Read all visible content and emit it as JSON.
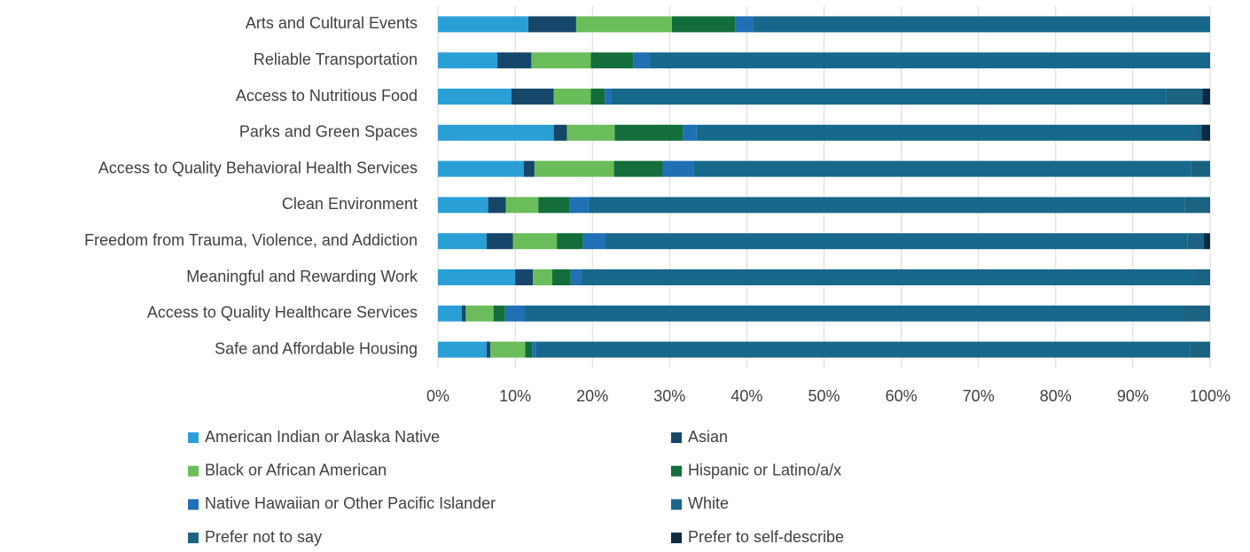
{
  "chart_data": {
    "type": "bar",
    "orientation": "horizontal",
    "stacked": true,
    "categories": [
      "Arts and Cultural Events",
      "Reliable Transportation",
      "Access to Nutritious Food",
      "Parks and Green Spaces",
      "Access to Quality Behavioral Health Services",
      "Clean Environment",
      "Freedom from Trauma, Violence, and Addiction",
      "Meaningful and Rewarding Work",
      "Access to Quality Healthcare Services",
      "Safe and Affordable Housing"
    ],
    "series": [
      {
        "name": "American Indian or Alaska Native",
        "color": "#2a9fd6",
        "values": [
          11.7,
          7.7,
          9.5,
          15.0,
          11.1,
          6.5,
          6.3,
          10.0,
          3.1,
          6.3
        ]
      },
      {
        "name": "Asian",
        "color": "#16476a",
        "values": [
          6.2,
          4.4,
          5.5,
          1.7,
          1.4,
          2.3,
          3.4,
          2.3,
          0.5,
          0.5
        ]
      },
      {
        "name": "Black or African American",
        "color": "#6bbd5b",
        "values": [
          12.4,
          7.7,
          4.8,
          6.2,
          10.3,
          4.2,
          5.7,
          2.5,
          3.6,
          4.5
        ]
      },
      {
        "name": "Hispanic or Latino/a/x",
        "color": "#146e3c",
        "values": [
          8.2,
          5.5,
          1.8,
          8.8,
          6.3,
          4.0,
          3.4,
          2.4,
          1.5,
          0.9
        ]
      },
      {
        "name": "Native Hawaiian or Other Pacific Islander",
        "color": "#1f70b5",
        "values": [
          2.3,
          2.2,
          0.9,
          1.8,
          4.0,
          2.5,
          2.8,
          1.3,
          2.5,
          0.5
        ]
      },
      {
        "name": "White",
        "color": "#17688a",
        "values": [
          59.2,
          72.5,
          71.8,
          64.6,
          64.4,
          77.2,
          75.5,
          79.6,
          85.3,
          84.7
        ]
      },
      {
        "name": "Prefer not to say",
        "color": "#1b6380",
        "values": [
          0,
          0,
          4.7,
          0.8,
          2.5,
          3.3,
          2.1,
          1.9,
          3.5,
          2.6
        ]
      },
      {
        "name": "Prefer to self-describe",
        "color": "#0e2a43",
        "values": [
          0,
          0,
          1.0,
          1.1,
          0,
          0,
          0.8,
          0,
          0,
          0
        ]
      }
    ],
    "xlim": [
      0,
      100
    ],
    "xticks": [
      {
        "value": 0,
        "label": "0%"
      },
      {
        "value": 10,
        "label": "10%"
      },
      {
        "value": 20,
        "label": "20%"
      },
      {
        "value": 30,
        "label": "30%"
      },
      {
        "value": 40,
        "label": "40%"
      },
      {
        "value": 50,
        "label": "50%"
      },
      {
        "value": 60,
        "label": "60%"
      },
      {
        "value": 70,
        "label": "70%"
      },
      {
        "value": 80,
        "label": "80%"
      },
      {
        "value": 90,
        "label": "90%"
      },
      {
        "value": 100,
        "label": "100%"
      }
    ],
    "grid": true,
    "legend": "bottom"
  }
}
